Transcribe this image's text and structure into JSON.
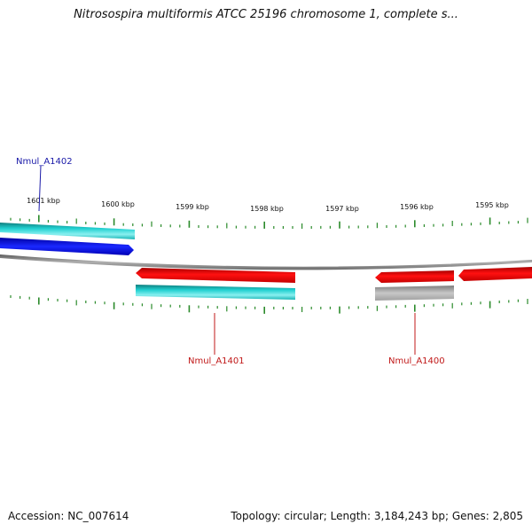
{
  "header": {
    "title": "Nitrosospira multiformis ATCC 25196 chromosome 1, complete s..."
  },
  "footer": {
    "accession": "Accession: NC_007614",
    "summary": "Topology: circular; Length: 3,184,243 bp; Genes: 2,805"
  },
  "colors": {
    "backbone": "#7a7a7a",
    "tick": "#2a8a2a",
    "gene_cyan": "#1ac6c6",
    "gene_blue": "#0a10e0",
    "gene_red": "#ee0c0c",
    "gene_gray": "#a8a8a8",
    "label_blue": "#1a1aa8",
    "label_red": "#c01818"
  },
  "scale": {
    "labels": [
      {
        "text": "1601 kbp",
        "kbp": 1601
      },
      {
        "text": "1600 kbp",
        "kbp": 1600
      },
      {
        "text": "1599 kbp",
        "kbp": 1599
      },
      {
        "text": "1598 kbp",
        "kbp": 1598
      },
      {
        "text": "1597 kbp",
        "kbp": 1597
      },
      {
        "text": "1596 kbp",
        "kbp": 1596
      },
      {
        "text": "1595 kbp",
        "kbp": 1595
      }
    ]
  },
  "gene_labels": [
    {
      "id": "gene-label-nmul-a1402",
      "text": "Nmul_A1402",
      "color": "blue"
    },
    {
      "id": "gene-label-nmul-a1401",
      "text": "Nmul_A1401",
      "color": "red"
    },
    {
      "id": "gene-label-nmul-a1400",
      "text": "Nmul_A1400",
      "color": "red"
    }
  ]
}
